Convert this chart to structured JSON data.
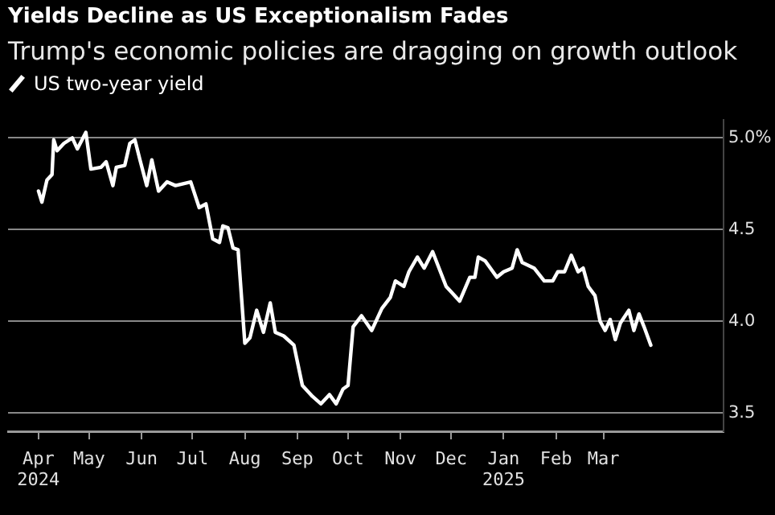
{
  "chart_data": {
    "type": "line",
    "title": "Yields Decline as US Exceptionalism Fades",
    "subtitle": "Trump's economic policies are dragging on growth outlook",
    "legend": "top left",
    "grid": "y",
    "marker": "none",
    "line_style": "solid",
    "x": [
      "2024-04-01",
      "2024-04-03",
      "2024-04-06",
      "2024-04-09",
      "2024-04-10",
      "2024-04-12",
      "2024-04-16",
      "2024-04-21",
      "2024-04-24",
      "2024-04-29",
      "2024-05-02",
      "2024-05-08",
      "2024-05-11",
      "2024-05-15",
      "2024-05-17",
      "2024-05-22",
      "2024-05-25",
      "2024-05-28",
      "2024-05-31",
      "2024-06-04",
      "2024-06-07",
      "2024-06-11",
      "2024-06-16",
      "2024-06-21",
      "2024-06-30",
      "2024-07-05",
      "2024-07-09",
      "2024-07-13",
      "2024-07-17",
      "2024-07-19",
      "2024-07-22",
      "2024-07-25",
      "2024-07-28",
      "2024-08-01",
      "2024-08-04",
      "2024-08-08",
      "2024-08-12",
      "2024-08-16",
      "2024-08-19",
      "2024-08-24",
      "2024-08-30",
      "2024-09-04",
      "2024-09-10",
      "2024-09-15",
      "2024-09-20",
      "2024-09-24",
      "2024-09-28",
      "2024-10-01",
      "2024-10-04",
      "2024-10-09",
      "2024-10-15",
      "2024-10-21",
      "2024-10-26",
      "2024-10-29",
      "2024-11-03",
      "2024-11-06",
      "2024-11-11",
      "2024-11-15",
      "2024-11-20",
      "2024-11-28",
      "2024-12-01",
      "2024-12-06",
      "2024-12-12",
      "2024-12-15",
      "2024-12-17",
      "2024-12-21",
      "2024-12-28",
      "2025-01-01",
      "2025-01-06",
      "2025-01-09",
      "2025-01-12",
      "2025-01-19",
      "2025-01-25",
      "2025-01-30",
      "2025-02-02",
      "2025-02-06",
      "2025-02-10",
      "2025-02-14",
      "2025-02-17",
      "2025-02-20",
      "2025-02-24",
      "2025-02-27",
      "2025-03-02",
      "2025-03-05",
      "2025-03-08",
      "2025-03-11",
      "2025-03-16",
      "2025-03-19",
      "2025-03-22",
      "2025-03-25",
      "2025-03-29"
    ],
    "series": [
      {
        "name": "US two-year yield",
        "color": "#ffffff",
        "values": [
          4.71,
          4.65,
          4.77,
          4.8,
          4.99,
          4.93,
          4.97,
          5.0,
          4.94,
          5.03,
          4.83,
          4.84,
          4.87,
          4.74,
          4.84,
          4.85,
          4.97,
          4.99,
          4.88,
          4.74,
          4.88,
          4.71,
          4.76,
          4.74,
          4.76,
          4.62,
          4.64,
          4.45,
          4.43,
          4.52,
          4.51,
          4.4,
          4.39,
          3.88,
          3.91,
          4.06,
          3.94,
          4.1,
          3.94,
          3.92,
          3.87,
          3.65,
          3.59,
          3.55,
          3.6,
          3.55,
          3.63,
          3.65,
          3.97,
          4.03,
          3.95,
          4.07,
          4.13,
          4.22,
          4.19,
          4.27,
          4.35,
          4.29,
          4.38,
          4.19,
          4.16,
          4.11,
          4.24,
          4.24,
          4.35,
          4.33,
          4.24,
          4.27,
          4.29,
          4.39,
          4.32,
          4.29,
          4.22,
          4.22,
          4.27,
          4.27,
          4.36,
          4.27,
          4.29,
          4.19,
          4.14,
          4.0,
          3.95,
          4.01,
          3.9,
          3.99,
          4.06,
          3.95,
          4.04,
          3.97,
          3.87
        ]
      }
    ],
    "xlim": [
      "2024-03-14",
      "2025-05-11"
    ],
    "xticks": [
      {
        "value": "2024-04-01",
        "label": "Apr\n2024"
      },
      {
        "value": "2024-05-01",
        "label": "May"
      },
      {
        "value": "2024-06-01",
        "label": "Jun"
      },
      {
        "value": "2024-07-01",
        "label": "Jul"
      },
      {
        "value": "2024-08-01",
        "label": "Aug"
      },
      {
        "value": "2024-09-01",
        "label": "Sep"
      },
      {
        "value": "2024-10-01",
        "label": "Oct"
      },
      {
        "value": "2024-11-01",
        "label": "Nov"
      },
      {
        "value": "2024-12-01",
        "label": "Dec"
      },
      {
        "value": "2025-01-01",
        "label": "Jan\n2025"
      },
      {
        "value": "2025-02-01",
        "label": "Feb"
      },
      {
        "value": "2025-03-01",
        "label": "Mar"
      }
    ],
    "ylim": [
      3.4,
      5.1
    ],
    "yticks": [
      3.5,
      {
        "value": 4.0,
        "label": "4.0"
      },
      4.5,
      {
        "value": 5.0,
        "label": "5.0%"
      }
    ]
  }
}
